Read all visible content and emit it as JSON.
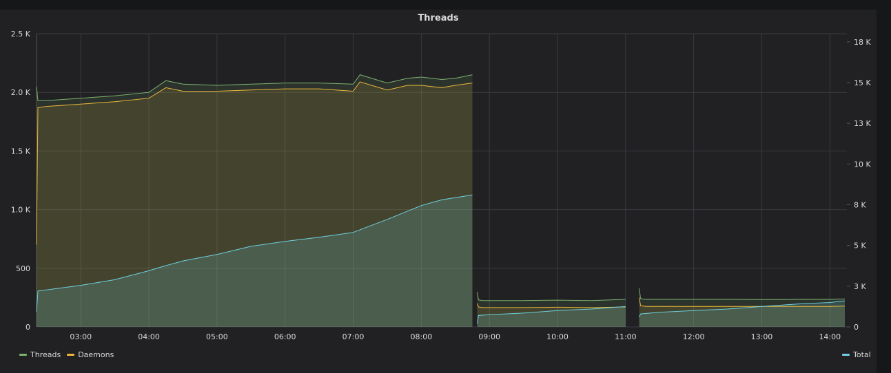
{
  "panel": {
    "title": "Threads"
  },
  "colors": {
    "threads": "#7eb26d",
    "daemons": "#eab839",
    "total": "#6ed0e0",
    "grid": "#3a3a3f",
    "text": "#d8d9da"
  },
  "legend": {
    "left": [
      {
        "name": "Threads",
        "color": "#7eb26d"
      },
      {
        "name": "Daemons",
        "color": "#eab839"
      }
    ],
    "right": [
      {
        "name": "Total",
        "color": "#6ed0e0"
      }
    ]
  },
  "chart_data": {
    "type": "area",
    "title": "Threads",
    "x_axis": {
      "unit": "hour",
      "range": [
        2.35,
        14.25
      ],
      "ticks": [
        3,
        4,
        5,
        6,
        7,
        8,
        9,
        10,
        11,
        12,
        13,
        14
      ],
      "tick_labels": [
        "03:00",
        "04:00",
        "05:00",
        "06:00",
        "07:00",
        "08:00",
        "09:00",
        "10:00",
        "11:00",
        "12:00",
        "13:00",
        "14:00"
      ]
    },
    "y_left": {
      "range": [
        0,
        2500
      ],
      "ticks": [
        0,
        500,
        1000,
        1500,
        2000,
        2500
      ],
      "tick_labels": [
        "0",
        "500",
        "1.0 K",
        "1.5 K",
        "2.0 K",
        "2.5 K"
      ]
    },
    "y_right": {
      "range": [
        0,
        18000
      ],
      "ticks": [
        0,
        2500,
        5000,
        7500,
        10000,
        12500,
        15000,
        17500
      ],
      "tick_labels": [
        "0",
        "3 K",
        "5 K",
        "8 K",
        "10 K",
        "13 K",
        "15 K",
        "18 K"
      ]
    },
    "grid": true,
    "legend_position": "bottom",
    "series": [
      {
        "name": "Threads",
        "axis": "left",
        "segments": [
          {
            "x": [
              2.35,
              2.37,
              2.5,
              3.0,
              3.5,
              4.0,
              4.25,
              4.5,
              5.0,
              5.5,
              6.0,
              6.5,
              7.0,
              7.1,
              7.5,
              7.8,
              8.0,
              8.3,
              8.5,
              8.75
            ],
            "y": [
              2050,
              1930,
              1930,
              1950,
              1970,
              2000,
              2100,
              2070,
              2060,
              2070,
              2080,
              2080,
              2070,
              2150,
              2080,
              2120,
              2130,
              2110,
              2120,
              2150
            ]
          },
          {
            "x": [
              8.82,
              8.84,
              8.9,
              9.5,
              10.0,
              10.5,
              11.0
            ],
            "y": [
              300,
              230,
              225,
              225,
              228,
              225,
              235
            ]
          },
          {
            "x": [
              11.2,
              11.22,
              11.3,
              12.0,
              12.5,
              13.0,
              13.5,
              14.0,
              14.22
            ],
            "y": [
              330,
              240,
              235,
              235,
              235,
              233,
              235,
              235,
              238
            ]
          }
        ]
      },
      {
        "name": "Daemons",
        "axis": "left",
        "segments": [
          {
            "x": [
              2.35,
              2.37,
              2.5,
              3.0,
              3.5,
              4.0,
              4.25,
              4.5,
              5.0,
              5.5,
              6.0,
              6.5,
              7.0,
              7.1,
              7.5,
              7.8,
              8.0,
              8.3,
              8.5,
              8.75
            ],
            "y": [
              700,
              1870,
              1880,
              1900,
              1920,
              1950,
              2040,
              2010,
              2010,
              2020,
              2030,
              2030,
              2010,
              2090,
              2020,
              2060,
              2060,
              2040,
              2060,
              2080
            ]
          },
          {
            "x": [
              8.82,
              8.84,
              8.9,
              9.5,
              10.0,
              10.5,
              11.0
            ],
            "y": [
              200,
              170,
              165,
              165,
              168,
              165,
              170
            ]
          },
          {
            "x": [
              11.2,
              11.22,
              11.3,
              12.0,
              12.5,
              13.0,
              13.5,
              14.0,
              14.22
            ],
            "y": [
              250,
              180,
              175,
              175,
              175,
              175,
              175,
              175,
              178
            ]
          }
        ]
      },
      {
        "name": "Total",
        "axis": "right",
        "segments": [
          {
            "x": [
              2.35,
              2.37,
              3.0,
              3.5,
              4.0,
              4.2,
              4.5,
              5.0,
              5.5,
              6.0,
              6.5,
              7.0,
              7.5,
              8.0,
              8.3,
              8.75
            ],
            "y": [
              900,
              2200,
              2550,
              2900,
              3450,
              3700,
              4050,
              4450,
              4950,
              5250,
              5500,
              5800,
              6600,
              7450,
              7800,
              8100
            ]
          },
          {
            "x": [
              8.82,
              8.84,
              9.0,
              9.5,
              10.0,
              10.5,
              11.0
            ],
            "y": [
              200,
              700,
              750,
              850,
              1000,
              1100,
              1250
            ]
          },
          {
            "x": [
              11.2,
              11.22,
              11.5,
              12.0,
              12.5,
              13.0,
              13.5,
              14.0,
              14.22
            ],
            "y": [
              600,
              800,
              900,
              1000,
              1100,
              1250,
              1400,
              1500,
              1600
            ]
          }
        ]
      }
    ]
  }
}
